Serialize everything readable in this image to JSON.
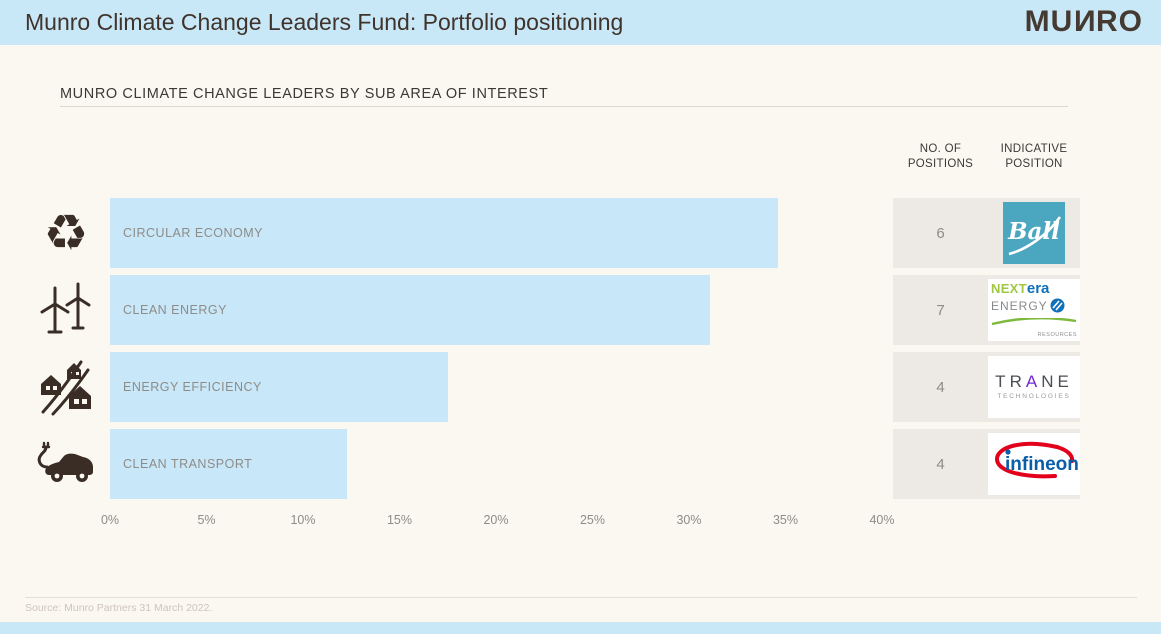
{
  "header": {
    "title": "Munro Climate Change Leaders Fund: Portfolio positioning",
    "brand_mu": "MU",
    "brand_n": "N",
    "brand_ro": "RO"
  },
  "section": {
    "subtitle": "MUNRO CLIMATE CHANGE LEADERS BY SUB AREA OF INTEREST"
  },
  "table": {
    "col_positions_line1": "NO. OF",
    "col_positions_line2": "POSITIONS",
    "col_indicative_line1": "INDICATIVE",
    "col_indicative_line2": "POSITION"
  },
  "chart_data": {
    "type": "bar",
    "orientation": "horizontal",
    "title": "MUNRO CLIMATE CHANGE LEADERS BY SUB AREA OF INTEREST",
    "categories": [
      "CIRCULAR ECONOMY",
      "CLEAN ENERGY",
      "ENERGY EFFICIENCY",
      "CLEAN TRANSPORT"
    ],
    "values": [
      34.6,
      31.1,
      17.5,
      12.3
    ],
    "no_of_positions": [
      6,
      7,
      4,
      4
    ],
    "indicative_position": [
      "Ball",
      "NextEra Energy Resources",
      "Trane Technologies",
      "Infineon"
    ],
    "x_ticks": [
      "0%",
      "5%",
      "10%",
      "15%",
      "20%",
      "25%",
      "30%",
      "35%",
      "40%"
    ],
    "xlim": [
      0,
      40
    ],
    "xlabel": "",
    "ylabel": "",
    "grid": false,
    "legend": false,
    "bar_color": "#c8e7f8"
  },
  "rows": [
    {
      "label": "CIRCULAR ECONOMY",
      "positions": "6",
      "icon": "recycle-icon",
      "logo": "Ball"
    },
    {
      "label": "CLEAN ENERGY",
      "positions": "7",
      "icon": "wind-turbines-icon",
      "logo": "NextEra Energy Resources"
    },
    {
      "label": "ENERGY EFFICIENCY",
      "positions": "4",
      "icon": "houses-road-icon",
      "logo": "Trane Technologies"
    },
    {
      "label": "CLEAN TRANSPORT",
      "positions": "4",
      "icon": "electric-car-icon",
      "logo": "Infineon"
    }
  ],
  "icons": {
    "recycle_glyph": "♻"
  },
  "logos": {
    "ball": {
      "text": "Ball",
      "bg": "#4ba6c0"
    },
    "nextera": {
      "next": "NEXT",
      "era": "era",
      "energy": "ENERGY",
      "resources": "RESOURCES"
    },
    "trane": {
      "t": "T",
      "r": "R",
      "a": "A",
      "n": "N",
      "e": "E",
      "sub": "TECHNOLOGIES"
    },
    "infineon": {
      "text": "infineon"
    }
  },
  "footer": {
    "source": "Source: Munro Partners 31 March 2022."
  },
  "colors": {
    "header_bg": "#c9e8f7",
    "page_bg": "#fbf8f1",
    "bar": "#c8e7f8",
    "cell_bg": "#edeae6",
    "muted_text": "#8e8c88",
    "dark_text": "#3f332c"
  }
}
